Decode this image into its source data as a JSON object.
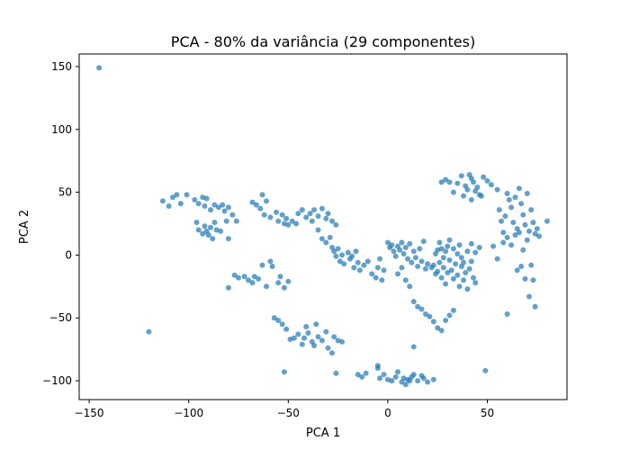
{
  "chart_data": {
    "type": "scatter",
    "title": "PCA - 80% da variância (29 componentes)",
    "xlabel": "PCA 1",
    "ylabel": "PCA 2",
    "xlim": [
      -155,
      90
    ],
    "ylim": [
      -115,
      160
    ],
    "xticks": [
      -150,
      -100,
      -50,
      0,
      50
    ],
    "yticks": [
      -100,
      -50,
      0,
      50,
      100,
      150
    ],
    "grid": false,
    "legend": "none",
    "point_color": "#1f77b4",
    "series": [
      {
        "points": [
          [
            -145,
            149
          ],
          [
            -120,
            -61
          ],
          [
            -113,
            43
          ],
          [
            -110,
            39
          ],
          [
            -108,
            46
          ],
          [
            -106,
            48
          ],
          [
            -104,
            41
          ],
          [
            -101,
            48
          ],
          [
            -97,
            44
          ],
          [
            -95,
            41
          ],
          [
            -93,
            46
          ],
          [
            -92,
            39
          ],
          [
            -91,
            45
          ],
          [
            -89,
            36
          ],
          [
            -87,
            40
          ],
          [
            -85,
            38
          ],
          [
            -83,
            40
          ],
          [
            -82,
            35
          ],
          [
            -80,
            38
          ],
          [
            -78,
            32
          ],
          [
            -76,
            27
          ],
          [
            -96,
            26
          ],
          [
            -95,
            20
          ],
          [
            -93,
            17
          ],
          [
            -92,
            23
          ],
          [
            -91,
            19
          ],
          [
            -90,
            16
          ],
          [
            -89,
            22
          ],
          [
            -88,
            13
          ],
          [
            -87,
            26
          ],
          [
            -86,
            20
          ],
          [
            -84,
            19
          ],
          [
            -80,
            13
          ],
          [
            -81,
            27
          ],
          [
            -68,
            42
          ],
          [
            -66,
            40
          ],
          [
            -64,
            37
          ],
          [
            -63,
            48
          ],
          [
            -62,
            32
          ],
          [
            -61,
            43
          ],
          [
            -59,
            30
          ],
          [
            -56,
            34
          ],
          [
            -55,
            27
          ],
          [
            -53,
            32
          ],
          [
            -52,
            25
          ],
          [
            -51,
            29
          ],
          [
            -50,
            24
          ],
          [
            -48,
            27
          ],
          [
            -46,
            25
          ],
          [
            -45,
            33
          ],
          [
            -43,
            36
          ],
          [
            -41,
            30
          ],
          [
            -39,
            33
          ],
          [
            -38,
            27
          ],
          [
            -37,
            36
          ],
          [
            -35,
            31
          ],
          [
            -33,
            37
          ],
          [
            -31,
            29
          ],
          [
            -30,
            33
          ],
          [
            -28,
            27
          ],
          [
            -26,
            24
          ],
          [
            -35,
            20
          ],
          [
            -33,
            13
          ],
          [
            -31,
            10
          ],
          [
            -29,
            14
          ],
          [
            -28,
            6
          ],
          [
            -27,
            3
          ],
          [
            -26,
            -1
          ],
          [
            -25,
            5
          ],
          [
            -24,
            -5
          ],
          [
            -23,
            0
          ],
          [
            -22,
            -7
          ],
          [
            -20,
            2
          ],
          [
            -19,
            -3
          ],
          [
            -18,
            -1
          ],
          [
            -17,
            -10
          ],
          [
            -16,
            3
          ],
          [
            -15,
            -6
          ],
          [
            -14,
            -12
          ],
          [
            -12,
            -8
          ],
          [
            -10,
            -5
          ],
          [
            -8,
            -15
          ],
          [
            -6,
            -18
          ],
          [
            -5,
            -10
          ],
          [
            -4,
            -3
          ],
          [
            -3,
            -20
          ],
          [
            -2,
            -12
          ],
          [
            -77,
            -16
          ],
          [
            -75,
            -18
          ],
          [
            -72,
            -17
          ],
          [
            -70,
            -20
          ],
          [
            -68,
            -22
          ],
          [
            -67,
            -17
          ],
          [
            -65,
            -19
          ],
          [
            -63,
            -8
          ],
          [
            -61,
            -25
          ],
          [
            -59,
            -5
          ],
          [
            -58,
            -9
          ],
          [
            -55,
            -22
          ],
          [
            -54,
            -17
          ],
          [
            -52,
            -26
          ],
          [
            -50,
            -21
          ],
          [
            -80,
            -26
          ],
          [
            -57,
            -50
          ],
          [
            -55,
            -52
          ],
          [
            -53,
            -55
          ],
          [
            -51,
            -59
          ],
          [
            -49,
            -67
          ],
          [
            -47,
            -66
          ],
          [
            -45,
            -63
          ],
          [
            -43,
            -71
          ],
          [
            -42,
            -66
          ],
          [
            -41,
            -57
          ],
          [
            -40,
            -62
          ],
          [
            -38,
            -69
          ],
          [
            -37,
            -72
          ],
          [
            -36,
            -55
          ],
          [
            -35,
            -65
          ],
          [
            -33,
            -68
          ],
          [
            -31,
            -61
          ],
          [
            -30,
            -74
          ],
          [
            -28,
            -78
          ],
          [
            -27,
            -65
          ],
          [
            -25,
            -68
          ],
          [
            -23,
            -69
          ],
          [
            -52,
            -93
          ],
          [
            -26,
            -94
          ],
          [
            -15,
            -95
          ],
          [
            -13,
            -97
          ],
          [
            -11,
            -94
          ],
          [
            -5,
            -90
          ],
          [
            -4,
            -98
          ],
          [
            -2,
            -95
          ],
          [
            0,
            -99
          ],
          [
            2,
            -100
          ],
          [
            4,
            -97
          ],
          [
            5,
            -93
          ],
          [
            7,
            -101
          ],
          [
            8,
            -98
          ],
          [
            9,
            -103
          ],
          [
            10,
            -99
          ],
          [
            11,
            -100
          ],
          [
            12,
            -97
          ],
          [
            13,
            -95
          ],
          [
            15,
            -100
          ],
          [
            17,
            -96
          ],
          [
            18,
            -98
          ],
          [
            20,
            -101
          ],
          [
            23,
            -99
          ],
          [
            -5,
            -88
          ],
          [
            13,
            -73
          ],
          [
            0,
            10
          ],
          [
            1,
            6
          ],
          [
            2,
            8
          ],
          [
            3,
            3
          ],
          [
            4,
            -1
          ],
          [
            5,
            7
          ],
          [
            6,
            4
          ],
          [
            7,
            10
          ],
          [
            8,
            1
          ],
          [
            9,
            6
          ],
          [
            10,
            -3
          ],
          [
            11,
            9
          ],
          [
            12,
            -6
          ],
          [
            13,
            3
          ],
          [
            14,
            -2
          ],
          [
            15,
            -9
          ],
          [
            16,
            5
          ],
          [
            17,
            -5
          ],
          [
            18,
            11
          ],
          [
            19,
            -11
          ],
          [
            20,
            -7
          ],
          [
            5,
            -15
          ],
          [
            7,
            -10
          ],
          [
            9,
            -20
          ],
          [
            11,
            -25
          ],
          [
            13,
            -37
          ],
          [
            15,
            -41
          ],
          [
            17,
            -43
          ],
          [
            19,
            -47
          ],
          [
            21,
            -49
          ],
          [
            23,
            -53
          ],
          [
            25,
            -58
          ],
          [
            27,
            -60
          ],
          [
            29,
            -52
          ],
          [
            31,
            -48
          ],
          [
            33,
            -44
          ],
          [
            22,
            -10
          ],
          [
            23,
            -8
          ],
          [
            24,
            -15
          ],
          [
            25,
            -13
          ],
          [
            26,
            -6
          ],
          [
            27,
            -18
          ],
          [
            28,
            -10
          ],
          [
            29,
            -23
          ],
          [
            30,
            -14
          ],
          [
            31,
            -4
          ],
          [
            32,
            -12
          ],
          [
            33,
            -19
          ],
          [
            34,
            -7
          ],
          [
            35,
            -16
          ],
          [
            36,
            -25
          ],
          [
            37,
            -9
          ],
          [
            38,
            -20
          ],
          [
            39,
            -14
          ],
          [
            40,
            -27
          ],
          [
            41,
            -11
          ],
          [
            42,
            -5
          ],
          [
            43,
            -18
          ],
          [
            44,
            -22
          ],
          [
            24,
            1
          ],
          [
            25,
            4
          ],
          [
            26,
            10
          ],
          [
            27,
            5
          ],
          [
            28,
            -2
          ],
          [
            29,
            3
          ],
          [
            30,
            7
          ],
          [
            31,
            12
          ],
          [
            33,
            5
          ],
          [
            35,
            1
          ],
          [
            36,
            8
          ],
          [
            37,
            -2
          ],
          [
            38,
            -6
          ],
          [
            40,
            3
          ],
          [
            42,
            9
          ],
          [
            44,
            2
          ],
          [
            46,
            6
          ],
          [
            27,
            58
          ],
          [
            29,
            60
          ],
          [
            31,
            58
          ],
          [
            33,
            50
          ],
          [
            35,
            57
          ],
          [
            37,
            63
          ],
          [
            39,
            55
          ],
          [
            40,
            52
          ],
          [
            41,
            64
          ],
          [
            42,
            61
          ],
          [
            43,
            58
          ],
          [
            44,
            51
          ],
          [
            45,
            54
          ],
          [
            46,
            48
          ],
          [
            47,
            47
          ],
          [
            48,
            62
          ],
          [
            50,
            59
          ],
          [
            52,
            56
          ],
          [
            55,
            52
          ],
          [
            38,
            47
          ],
          [
            42,
            44
          ],
          [
            56,
            36
          ],
          [
            57,
            27
          ],
          [
            58,
            18
          ],
          [
            59,
            31
          ],
          [
            60,
            49
          ],
          [
            61,
            44
          ],
          [
            62,
            38
          ],
          [
            63,
            26
          ],
          [
            64,
            46
          ],
          [
            65,
            21
          ],
          [
            66,
            53
          ],
          [
            67,
            41
          ],
          [
            68,
            32
          ],
          [
            69,
            24
          ],
          [
            70,
            49
          ],
          [
            71,
            19
          ],
          [
            72,
            36
          ],
          [
            73,
            26
          ],
          [
            74,
            17
          ],
          [
            75,
            21
          ],
          [
            76,
            15
          ],
          [
            80,
            27
          ],
          [
            53,
            7
          ],
          [
            55,
            -3
          ],
          [
            58,
            10
          ],
          [
            60,
            14
          ],
          [
            62,
            8
          ],
          [
            64,
            16
          ],
          [
            66,
            18
          ],
          [
            68,
            4
          ],
          [
            70,
            12
          ],
          [
            72,
            -8
          ],
          [
            60,
            -47
          ],
          [
            65,
            -12
          ],
          [
            67,
            -9
          ],
          [
            69,
            -19
          ],
          [
            71,
            -33
          ],
          [
            73,
            -20
          ],
          [
            74,
            -41
          ],
          [
            49,
            -92
          ]
        ]
      }
    ]
  }
}
